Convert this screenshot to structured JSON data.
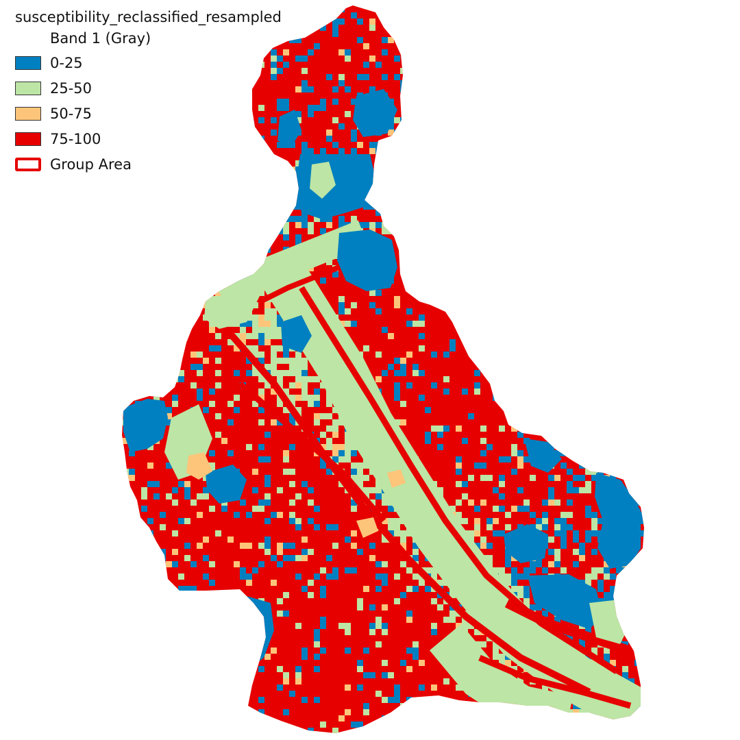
{
  "legend": {
    "title": "susceptibility_reclassified_resampled",
    "subtitle": "Band 1 (Gray)",
    "items": [
      {
        "label": "0-25",
        "color": "#0080c0",
        "icon": "fill-swatch"
      },
      {
        "label": "25-50",
        "color": "#bde5a5",
        "icon": "fill-swatch"
      },
      {
        "label": "50-75",
        "color": "#fdc57a",
        "icon": "fill-swatch"
      },
      {
        "label": "75-100",
        "color": "#e60000",
        "icon": "fill-swatch"
      },
      {
        "label": "Group Area",
        "color": "#e60000",
        "icon": "outline-swatch"
      }
    ]
  },
  "map": {
    "layer": "susceptibility_reclassified_resampled",
    "classes": [
      "0-25",
      "25-50",
      "50-75",
      "75-100"
    ],
    "class_colors": [
      "#0080c0",
      "#bde5a5",
      "#fdc57a",
      "#e60000"
    ]
  }
}
